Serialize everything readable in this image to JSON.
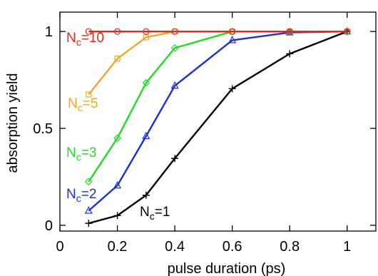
{
  "chart_data": {
    "type": "line",
    "xlabel": "pulse duration (ps)",
    "ylabel": "absorption yield",
    "xlim": [
      0,
      1.1
    ],
    "ylim": [
      -0.03,
      1.1
    ],
    "x_ticks": [
      0,
      0.2,
      0.4,
      0.6,
      0.8,
      1
    ],
    "x_tick_labels": [
      "0",
      "0.2",
      "0.4",
      "0.6",
      "0.8",
      "1"
    ],
    "y_ticks": [
      0,
      0.5,
      1
    ],
    "y_tick_labels": [
      "0",
      "0.5",
      "1"
    ],
    "grid": false,
    "legend": "inline labels",
    "series": [
      {
        "name": "Nc=10",
        "label_main": "N",
        "label_sub": "c",
        "label_tail": "=10",
        "color": "#e8261a",
        "marker": "circle",
        "x": [
          0.1,
          0.2,
          0.3,
          0.4,
          0.6,
          0.8,
          1.0
        ],
        "y": [
          1.0,
          1.0,
          1.0,
          1.0,
          1.0,
          1.0,
          1.0
        ]
      },
      {
        "name": "Nc=5",
        "label_main": "N",
        "label_sub": "c",
        "label_tail": "=5",
        "color": "#f5a623",
        "marker": "square",
        "x": [
          0.1,
          0.2,
          0.3,
          0.4,
          0.6,
          0.8,
          1.0
        ],
        "y": [
          0.675,
          0.86,
          0.97,
          1.0,
          1.0,
          1.0,
          1.0
        ]
      },
      {
        "name": "Nc=3",
        "label_main": "N",
        "label_sub": "c",
        "label_tail": "=3",
        "color": "#22dd22",
        "marker": "diamond",
        "x": [
          0.1,
          0.2,
          0.3,
          0.4,
          0.6,
          0.8,
          1.0
        ],
        "y": [
          0.225,
          0.45,
          0.735,
          0.915,
          1.0,
          1.0,
          1.0
        ]
      },
      {
        "name": "Nc=2",
        "label_main": "N",
        "label_sub": "c",
        "label_tail": "=2",
        "color": "#1b2ee0",
        "marker": "triangle",
        "x": [
          0.1,
          0.2,
          0.3,
          0.4,
          0.6,
          0.8,
          1.0
        ],
        "y": [
          0.075,
          0.205,
          0.46,
          0.72,
          0.955,
          0.995,
          1.0
        ]
      },
      {
        "name": "Nc=1",
        "label_main": "N",
        "label_sub": "c",
        "label_tail": "=1",
        "color": "#000000",
        "marker": "plus",
        "x": [
          0.1,
          0.2,
          0.3,
          0.4,
          0.6,
          0.8,
          1.0
        ],
        "y": [
          0.01,
          0.05,
          0.155,
          0.345,
          0.705,
          0.885,
          1.0
        ]
      }
    ]
  }
}
